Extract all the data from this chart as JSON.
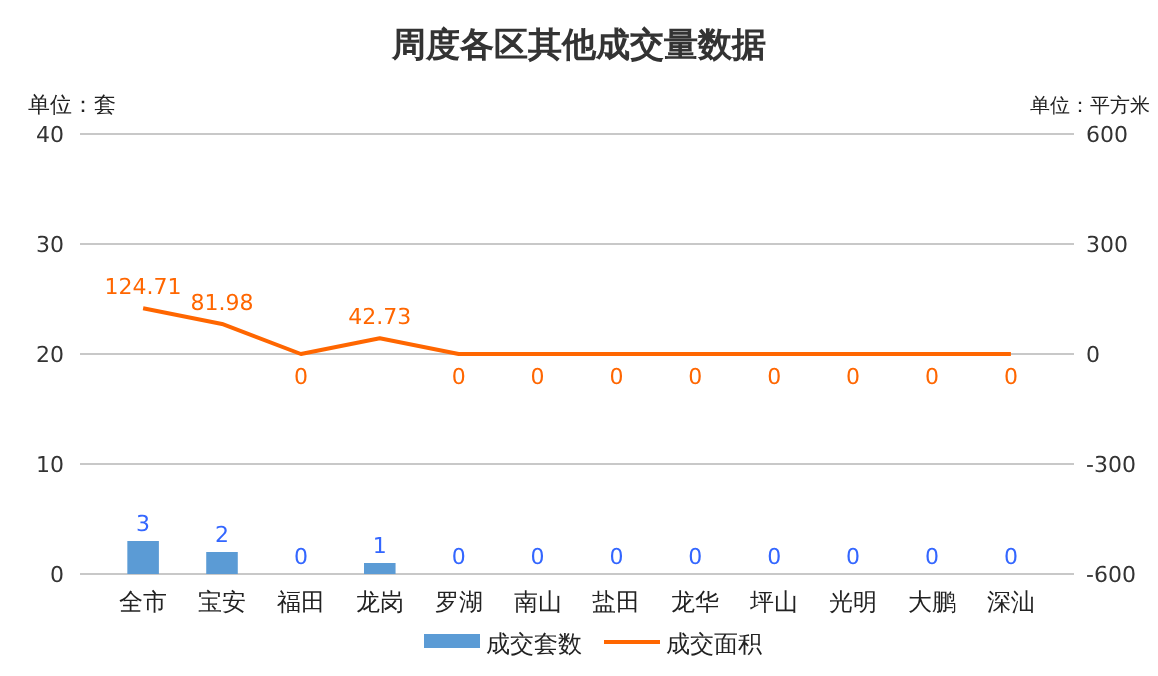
{
  "chart_data": {
    "type": "bar",
    "title": "周度各区其他成交量数据",
    "ylabel": "单位：套",
    "y2label": "单位：平方米",
    "categories": [
      "全市",
      "宝安",
      "福田",
      "龙岗",
      "罗湖",
      "南山",
      "盐田",
      "龙华",
      "坪山",
      "光明",
      "大鹏",
      "深汕"
    ],
    "series": [
      {
        "name": "成交套数",
        "color": "#5b9bd5",
        "values": [
          3,
          2,
          0,
          1,
          0,
          0,
          0,
          0,
          0,
          0,
          0,
          0
        ]
      },
      {
        "name": "成交面积",
        "type": "line",
        "axis": "y2",
        "color": "#ff6600",
        "values": [
          124.71,
          81.98,
          0,
          42.73,
          0,
          0,
          0,
          0,
          0,
          0,
          0,
          0
        ]
      }
    ],
    "ylim": [
      0,
      40
    ],
    "yticks": [
      0,
      10,
      20,
      30,
      40
    ],
    "y2lim": [
      -600,
      600
    ],
    "y2ticks": [
      -600,
      -300,
      0,
      300,
      600
    ],
    "grid": "y",
    "legend": "bottom",
    "data_labels": true,
    "marker": "none"
  }
}
